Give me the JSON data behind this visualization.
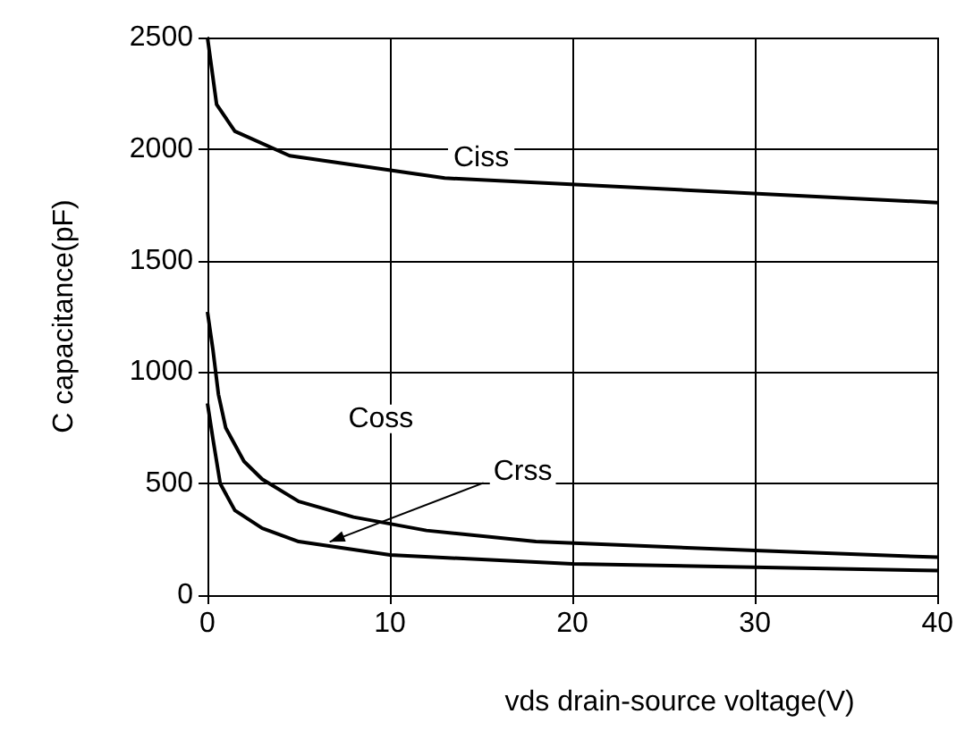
{
  "chart_data": {
    "type": "line",
    "xlabel": "vds drain-source voltage(V)",
    "ylabel": "C capacitance(pF)",
    "xlim": [
      0,
      40
    ],
    "xticks": [
      0,
      10,
      20,
      30,
      40
    ],
    "ylim": [
      0,
      2500
    ],
    "yticks": [
      0,
      500,
      1000,
      1500,
      2000,
      2500
    ],
    "grid": true,
    "marker": "none",
    "line_style": "solid",
    "series": [
      {
        "color": "#000000",
        "x": [
          0,
          0.5,
          1.5,
          4.5,
          13,
          40
        ],
        "values": [
          2500,
          2200,
          2080,
          1970,
          1870,
          1760
        ]
      },
      {
        "color": "#000000",
        "x": [
          0,
          0.3,
          0.6,
          1,
          2,
          3,
          5,
          8,
          12,
          18,
          30,
          40
        ],
        "values": [
          1270,
          1100,
          900,
          750,
          600,
          520,
          420,
          350,
          290,
          240,
          200,
          170
        ]
      },
      {
        "color": "#000000",
        "x": [
          0,
          0.3,
          0.7,
          1.5,
          3,
          5,
          10,
          20,
          40
        ],
        "values": [
          860,
          700,
          500,
          380,
          300,
          240,
          180,
          140,
          110
        ]
      }
    ],
    "annotations": [
      {
        "text": "Ciss",
        "x": 15,
        "y": 1960
      },
      {
        "text": "Coss",
        "x": 9.5,
        "y": 790
      },
      {
        "text": "Crss",
        "x": 6.5,
        "y": 215
      }
    ]
  }
}
